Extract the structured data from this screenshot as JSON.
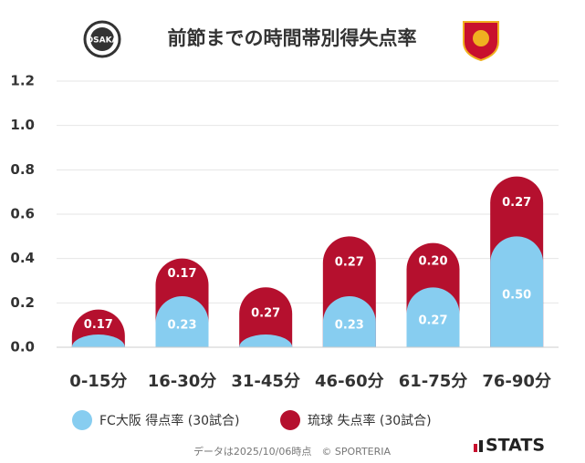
{
  "chart_data": {
    "type": "stacked-bar",
    "title": "前節までの時間帯別得失点率",
    "categories": [
      "0-15分",
      "16-30分",
      "31-45分",
      "46-60分",
      "61-75分",
      "76-90分"
    ],
    "series": [
      {
        "name": "FC大阪 得点率 (30試合)",
        "color": "#87cdf0",
        "values": [
          0,
          0.23,
          0,
          0.23,
          0.27,
          0.5
        ],
        "value_labels": [
          null,
          "0.23",
          null,
          "0.23",
          "0.27",
          "0.50"
        ]
      },
      {
        "name": "琉球 失点率 (30試合)",
        "color": "#b5102e",
        "values": [
          0.17,
          0.17,
          0.27,
          0.27,
          0.2,
          0.27
        ],
        "value_labels": [
          "0.17",
          "0.17",
          "0.27",
          "0.27",
          "0.20",
          "0.27"
        ]
      }
    ],
    "ylim": [
      0,
      1.2
    ],
    "yticks": [
      {
        "value": 0,
        "label": "0.0"
      },
      0.2,
      0.4,
      0.6,
      0.8,
      {
        "value": 1,
        "label": "1.0"
      },
      1.2
    ],
    "grid": true,
    "footnote": "データは2025/10/06時点　© SPORTERIA",
    "brand": "STATS"
  }
}
